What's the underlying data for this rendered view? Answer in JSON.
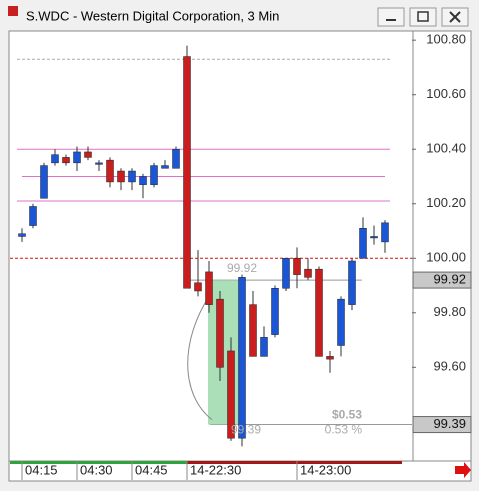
{
  "window": {
    "title": "S.WDC - Western Digital Corporation, 3 Min"
  },
  "chart_data": {
    "type": "candlestick",
    "categories": [
      "04:15",
      null,
      null,
      null,
      null,
      "04:30",
      null,
      null,
      null,
      null,
      "04:45",
      null,
      null,
      null,
      null,
      "14-22:30",
      null,
      null,
      null,
      null,
      null,
      null,
      null,
      null,
      null,
      "14-23:00",
      null,
      null,
      null,
      null,
      null,
      null,
      null,
      null
    ],
    "open": [
      100.08,
      100.12,
      100.22,
      100.35,
      100.37,
      100.35,
      100.39,
      100.35,
      100.36,
      100.32,
      100.28,
      100.27,
      100.27,
      100.33,
      100.33,
      100.74,
      99.91,
      99.95,
      99.85,
      99.66,
      99.34,
      99.83,
      99.64,
      99.72,
      99.89,
      100.0,
      99.96,
      99.96,
      99.64,
      99.68,
      99.83,
      100.0,
      100.08,
      100.06
    ],
    "high": [
      100.11,
      100.2,
      100.35,
      100.4,
      100.38,
      100.41,
      100.41,
      100.36,
      100.37,
      100.33,
      100.33,
      100.31,
      100.35,
      100.36,
      100.41,
      100.78,
      100.03,
      99.99,
      99.88,
      99.71,
      99.94,
      99.88,
      99.75,
      99.9,
      100.0,
      100.04,
      100.0,
      99.97,
      99.66,
      99.86,
      100.0,
      100.15,
      100.12,
      100.14
    ],
    "low": [
      100.06,
      100.11,
      100.22,
      100.34,
      100.34,
      100.32,
      100.36,
      100.32,
      100.26,
      100.25,
      100.25,
      100.22,
      100.26,
      100.33,
      100.33,
      99.89,
      99.86,
      99.8,
      99.55,
      99.33,
      99.31,
      99.64,
      99.64,
      99.71,
      99.88,
      99.89,
      99.92,
      99.64,
      99.58,
      99.64,
      99.81,
      100.0,
      100.05,
      100.02
    ],
    "close": [
      100.09,
      100.19,
      100.34,
      100.38,
      100.35,
      100.39,
      100.37,
      100.35,
      100.28,
      100.28,
      100.32,
      100.3,
      100.34,
      100.34,
      100.4,
      99.89,
      99.88,
      99.83,
      99.6,
      99.34,
      99.93,
      99.64,
      99.71,
      99.89,
      100.0,
      99.94,
      99.93,
      99.64,
      99.63,
      99.85,
      99.99,
      100.11,
      100.08,
      100.13
    ],
    "up_color": "#1a56d6",
    "down_color": "#c81e1e",
    "ylim": [
      99.26,
      100.83
    ],
    "yticks": [
      {
        "value": 100.8,
        "label": "100.80"
      },
      {
        "value": 100.6,
        "label": "100.60"
      },
      {
        "value": 100.4,
        "label": "100.40"
      },
      {
        "value": 100.2,
        "label": "100.20"
      },
      {
        "value": 100.0,
        "label": "100.00"
      },
      {
        "value": 99.8,
        "label": "99.80"
      },
      {
        "value": 99.6,
        "label": "99.60"
      }
    ],
    "levels": [
      {
        "value": 100.73,
        "color": "#aaaaaa",
        "dashed": true
      },
      {
        "value": 100.4,
        "color": "#e070c8",
        "dashed": false
      },
      {
        "value": 100.3,
        "color": "#e070c8",
        "dashed": false
      },
      {
        "value": 100.21,
        "color": "#e070c8",
        "dashed": false
      },
      {
        "value": 100.0,
        "color": "#d01010",
        "dashed": true
      },
      {
        "value": 99.92,
        "color": "#999999",
        "dashed": false
      },
      {
        "value": 99.39,
        "color": "#999999",
        "dashed": false
      }
    ],
    "markers": [
      {
        "value": 99.92,
        "label": "99.92"
      },
      {
        "value": 99.39,
        "label": "99.39"
      }
    ],
    "measure": {
      "from": 99.92,
      "to": 99.39,
      "from_label": "99.92",
      "to_label": "99.39",
      "change_label": "$0.53",
      "percent_label": "0.53 %"
    }
  }
}
